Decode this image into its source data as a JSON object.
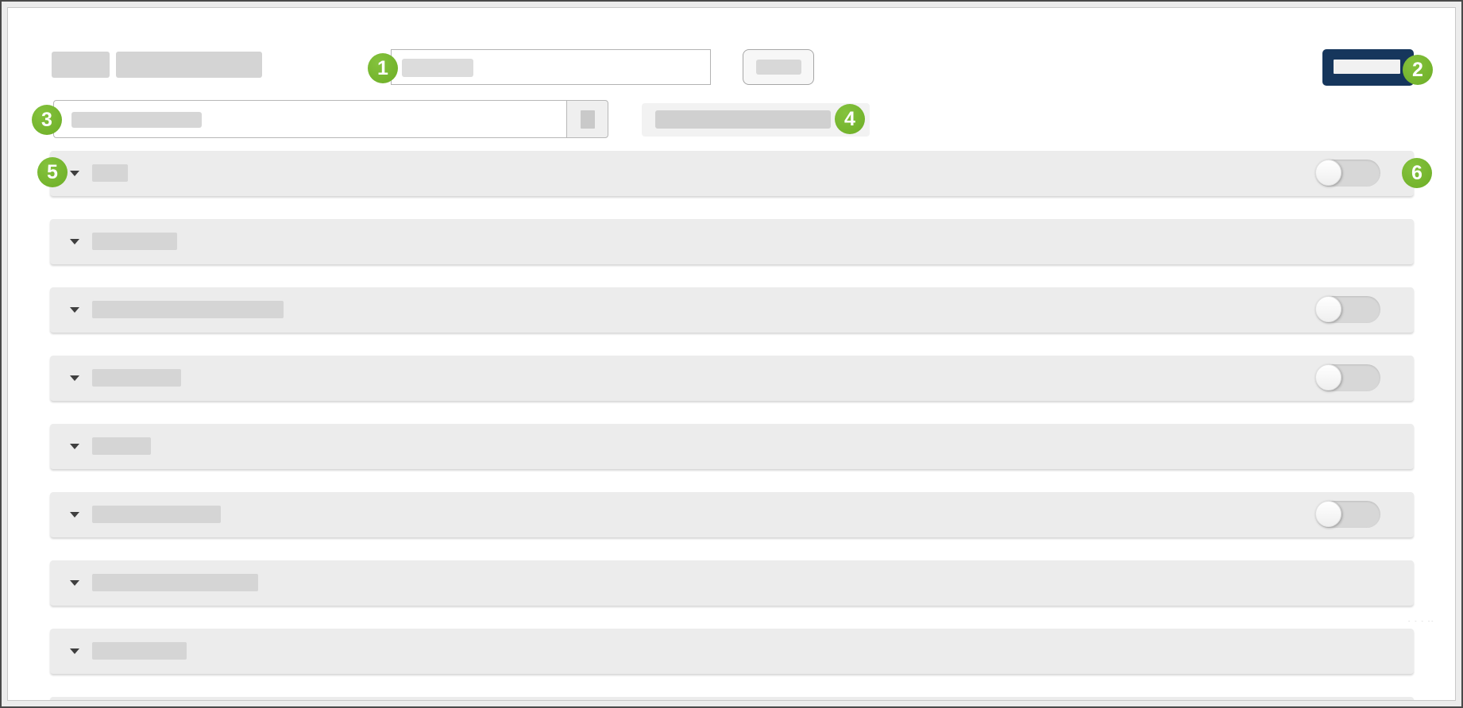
{
  "colors": {
    "annotation_green": "#74b42e",
    "primary_navy": "#16365c",
    "row_background": "#ececec",
    "skeleton_gray": "#d5d5d5"
  },
  "annotations": {
    "badges": [
      {
        "label": "1"
      },
      {
        "label": "2"
      },
      {
        "label": "3"
      },
      {
        "label": "4"
      },
      {
        "label": "5"
      },
      {
        "label": "6"
      }
    ]
  },
  "header": {
    "logo_blocks": 2,
    "title_input": {
      "value": "",
      "placeholder": "",
      "skeleton_width": 90
    },
    "top_button": {
      "label": "",
      "skeleton_width": 57
    },
    "primary_button": {
      "label": "",
      "skeleton_width": 84
    }
  },
  "search": {
    "input": {
      "value": "",
      "placeholder": "",
      "skeleton_width": 164
    },
    "button": {
      "label": ""
    },
    "filter_block": {
      "label": "",
      "skeleton_width": 221
    }
  },
  "rows": [
    {
      "skeleton_width": 45,
      "has_toggle": true,
      "toggle_state": "off"
    },
    {
      "skeleton_width": 107,
      "has_toggle": false,
      "toggle_state": null
    },
    {
      "skeleton_width": 241,
      "has_toggle": true,
      "toggle_state": "off"
    },
    {
      "skeleton_width": 112,
      "has_toggle": true,
      "toggle_state": "off"
    },
    {
      "skeleton_width": 74,
      "has_toggle": false,
      "toggle_state": null
    },
    {
      "skeleton_width": 162,
      "has_toggle": true,
      "toggle_state": "off"
    },
    {
      "skeleton_width": 209,
      "has_toggle": false,
      "toggle_state": null
    },
    {
      "skeleton_width": 119,
      "has_toggle": false,
      "toggle_state": null
    },
    {
      "skeleton_width": 0,
      "has_toggle": false,
      "toggle_state": null,
      "clipped": true
    }
  ],
  "artifact": {
    "faint_marks": "- - - --"
  }
}
